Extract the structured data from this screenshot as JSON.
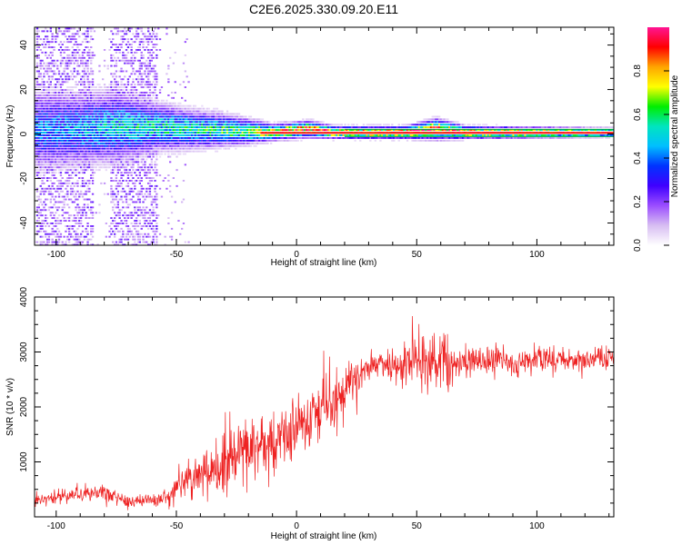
{
  "title": "C2E6.2025.330.09.20.E11",
  "chart_data": [
    {
      "type": "heatmap",
      "title": "",
      "xlabel": "Height of straight line (km)",
      "ylabel": "Frequency (Hz)",
      "xlim": [
        -109,
        132
      ],
      "ylim": [
        -50,
        48
      ],
      "xticks": [
        "-100",
        "-50",
        "0",
        "50",
        "100"
      ],
      "yticks": [
        "-40",
        "-20",
        "0",
        "20",
        "40"
      ],
      "grid": false,
      "legend": "none",
      "colorbar": {
        "label": "Normalized spectral amplitude",
        "range": [
          0,
          1
        ],
        "ticks": [
          "0.0",
          "0.2",
          "0.4",
          "0.6",
          "0.8"
        ],
        "colormap": [
          "#ffffff",
          "#d7bdf2",
          "#9b4dff",
          "#3f00ff",
          "#0033ff",
          "#00bfff",
          "#00e5c0",
          "#00ee00",
          "#ffff00",
          "#ffa500",
          "#ff0000",
          "#ff1493"
        ]
      },
      "ridge": [
        {
          "x": -109,
          "y": 2,
          "spread": 10,
          "amp": 0.4
        },
        {
          "x": -90,
          "y": 2,
          "spread": 9,
          "amp": 0.45
        },
        {
          "x": -75,
          "y": 3,
          "spread": 9,
          "amp": 0.5
        },
        {
          "x": -60,
          "y": 3,
          "spread": 6,
          "amp": 0.55
        },
        {
          "x": -45,
          "y": 2,
          "spread": 5,
          "amp": 0.55
        },
        {
          "x": -30,
          "y": 1.5,
          "spread": 4,
          "amp": 0.6
        },
        {
          "x": -20,
          "y": 1,
          "spread": 3,
          "amp": 0.7
        },
        {
          "x": -10,
          "y": 0.5,
          "spread": 2,
          "amp": 0.85
        },
        {
          "x": 5,
          "y": 2,
          "spread": 2,
          "amp": 0.9
        },
        {
          "x": 15,
          "y": 0.5,
          "spread": 1.5,
          "amp": 0.95
        },
        {
          "x": 45,
          "y": 0.5,
          "spread": 1.5,
          "amp": 0.95
        },
        {
          "x": 58,
          "y": 2,
          "spread": 2.5,
          "amp": 0.9
        },
        {
          "x": 70,
          "y": 0.5,
          "spread": 1.5,
          "amp": 0.95
        },
        {
          "x": 132,
          "y": 0.5,
          "spread": 1,
          "amp": 1.0
        }
      ]
    },
    {
      "type": "line",
      "title": "",
      "xlabel": "Height of straight line (km)",
      "ylabel": "SNR (10 * v/v)",
      "xlim": [
        -109,
        132
      ],
      "ylim": [
        0,
        4000
      ],
      "xticks": [
        "-100",
        "-50",
        "0",
        "50",
        "100"
      ],
      "yticks": [
        "1000",
        "2000",
        "3000",
        "4000"
      ],
      "grid": false,
      "legend": "none",
      "series": [
        {
          "color": "#ee2222",
          "trend": [
            {
              "x": -109,
              "y": 300,
              "noise": 100
            },
            {
              "x": -95,
              "y": 380,
              "noise": 130
            },
            {
              "x": -80,
              "y": 420,
              "noise": 150
            },
            {
              "x": -70,
              "y": 280,
              "noise": 90
            },
            {
              "x": -55,
              "y": 330,
              "noise": 120
            },
            {
              "x": -45,
              "y": 700,
              "noise": 300
            },
            {
              "x": -30,
              "y": 1000,
              "noise": 450
            },
            {
              "x": -15,
              "y": 1250,
              "noise": 550
            },
            {
              "x": -5,
              "y": 1500,
              "noise": 500
            },
            {
              "x": 5,
              "y": 1800,
              "noise": 550
            },
            {
              "x": 15,
              "y": 2050,
              "noise": 500
            },
            {
              "x": 25,
              "y": 2600,
              "noise": 300
            },
            {
              "x": 35,
              "y": 2800,
              "noise": 250
            },
            {
              "x": 45,
              "y": 2800,
              "noise": 300
            },
            {
              "x": 55,
              "y": 2900,
              "noise": 500
            },
            {
              "x": 62,
              "y": 2700,
              "noise": 500
            },
            {
              "x": 70,
              "y": 2850,
              "noise": 250
            },
            {
              "x": 85,
              "y": 2800,
              "noise": 220
            },
            {
              "x": 100,
              "y": 2850,
              "noise": 200
            },
            {
              "x": 115,
              "y": 2850,
              "noise": 200
            },
            {
              "x": 132,
              "y": 2900,
              "noise": 200
            }
          ]
        }
      ]
    }
  ]
}
